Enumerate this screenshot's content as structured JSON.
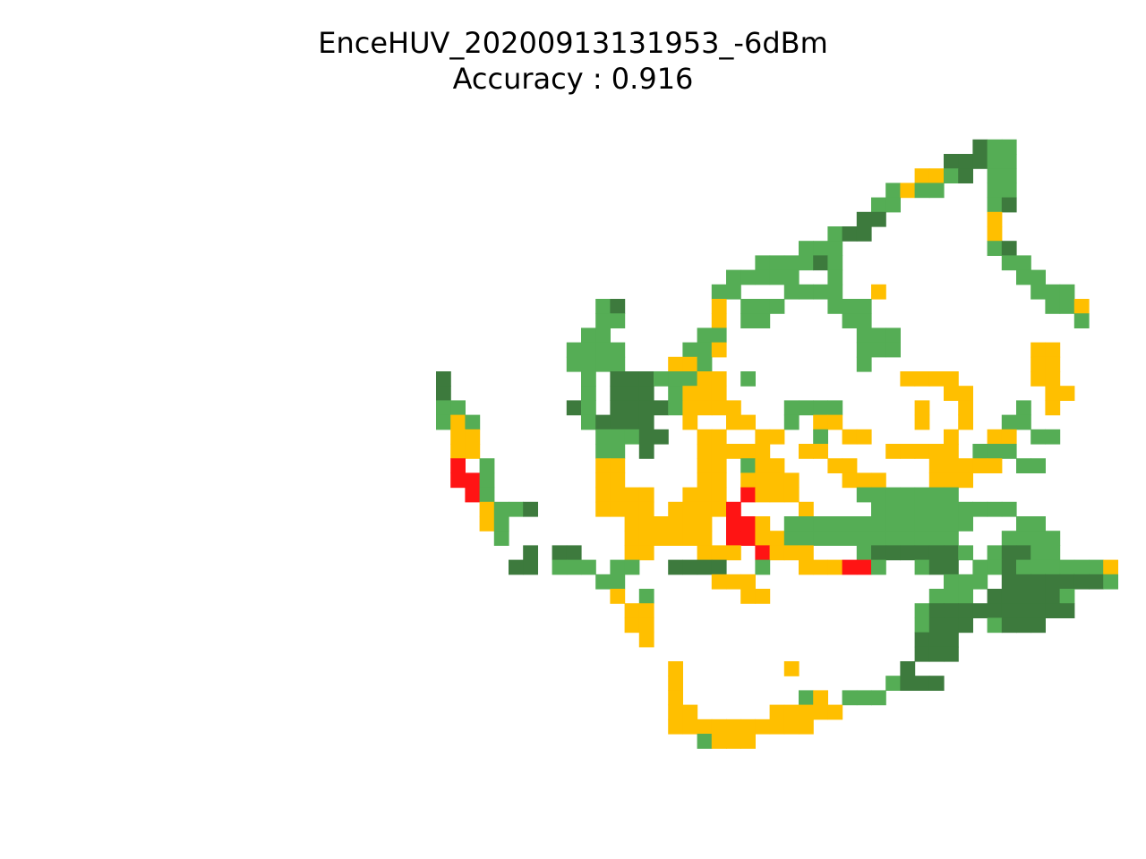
{
  "chart_data": {
    "type": "heatmap",
    "title": "EnceHUV_20200913131953_-6dBm",
    "subtitle": "Accuracy : 0.916",
    "xlabel": "",
    "ylabel": "",
    "grid": false,
    "axes_visible": false,
    "colors": {
      "0": "#ffffff",
      "1": "#3d7a3d",
      "2": "#55ad55",
      "3": "#ffbf00",
      "4": "#ff1414"
    },
    "rows": [
      "...........................................................",
      "...........................................................",
      "...........................................................",
      "...........................................................",
      "...........................................................",
      "...........................................................",
      "...........................................................",
      "...........................................................",
      "...........................................................",
      "....................................................122....",
      "..................................................11122....",
      "................................................3321.22....",
      "..............................................2322...22....",
      ".............................................22......21....",
      "............................................11.......3.....",
      "..........................................211........3.....",
      "........................................222..........21....",
      ".....................................222212...........22...",
      "...................................22222..2............22..",
      "..................................22...2222..3..........222.",
      "..........................21......3.222...222............223",
      "..........................22......3.22.....22..............2",
      ".........................22......22.........222............",
      "........................2222....223.........222.........33.",
      "........................2222...332..........2...........33.",
      "...............1.........2.11122233.2..........3333.....33.",
      "...............1.........2.111.2333...............33.....33.",
      "...............22.......12.111123333...2222.....3..3...2.3..",
      "...............232.......21111..3..33..2.33.....3..3..22....",
      "................33........22211..33..33..2.33.....3..33.22..",
      "................33........22.1...33333..33....33333.222.....",
      "................4.2.......33.....33.233...33.....33333.22...",
      "................442.......33.....33.3333...333...333........",
      ".................42.......3333..333.4333....2222222.........",
      "..................3221....3333.33334....3....2222222222.........",
      "..................32........333333.443.2222222222222...22.",
      "...................2........333333.4433222222222222...2222",
      ".....................1.11...33...333.4333...21111112.21122..",
      "....................11.222.22..1111..2..333442..211.2212222223",
      "..........................22......333.............222.11111112",
      "...........................3.2......33...........222.111112...",
      "............................33..................21111111111...",
      "............................33..................2111.2111.....",
      ".............................3..................111.........",
      "................................................111.........",
      "...............................3.......3.......1...........",
      "...............................3..............2111.........",
      "...............................3........23.222...........",
      "...............................33.....33333...............",
      "...............................3333333333.................",
      ".................................2333.....................",
      "...........................................................",
      "...........................................................",
      "...........................................................",
      "...........................................................",
      "...........................................................",
      "...........................................................",
      "...........................................................",
      "..........................................................."
    ]
  }
}
